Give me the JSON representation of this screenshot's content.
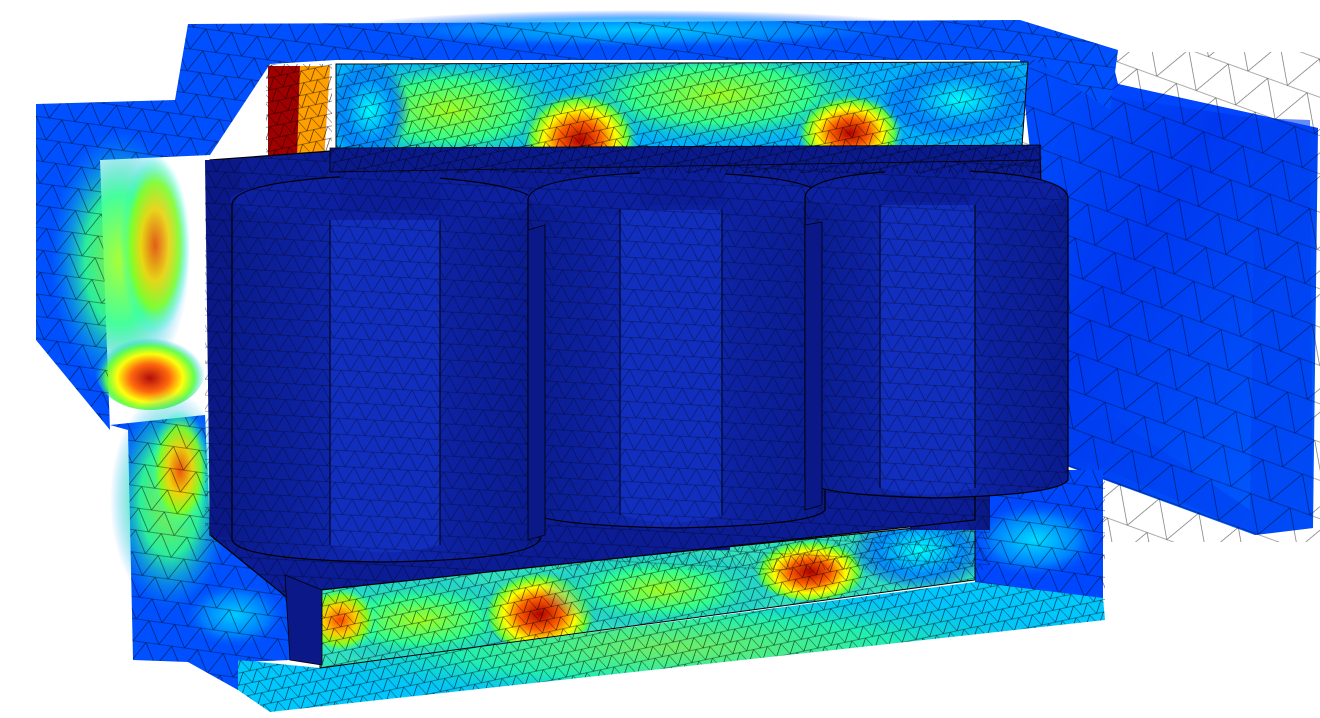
{
  "scene": {
    "subject": "transformer-fem-mesh",
    "colormap": [
      "#00007f",
      "#0000ff",
      "#0080ff",
      "#00ffff",
      "#80ff00",
      "#ffff00",
      "#ff8000",
      "#d00000",
      "#800000"
    ],
    "background": "#ffffff",
    "core_color": "#0a1a8c",
    "coil_color": "#0c1f9e",
    "mesh_line_color": "#000000"
  }
}
